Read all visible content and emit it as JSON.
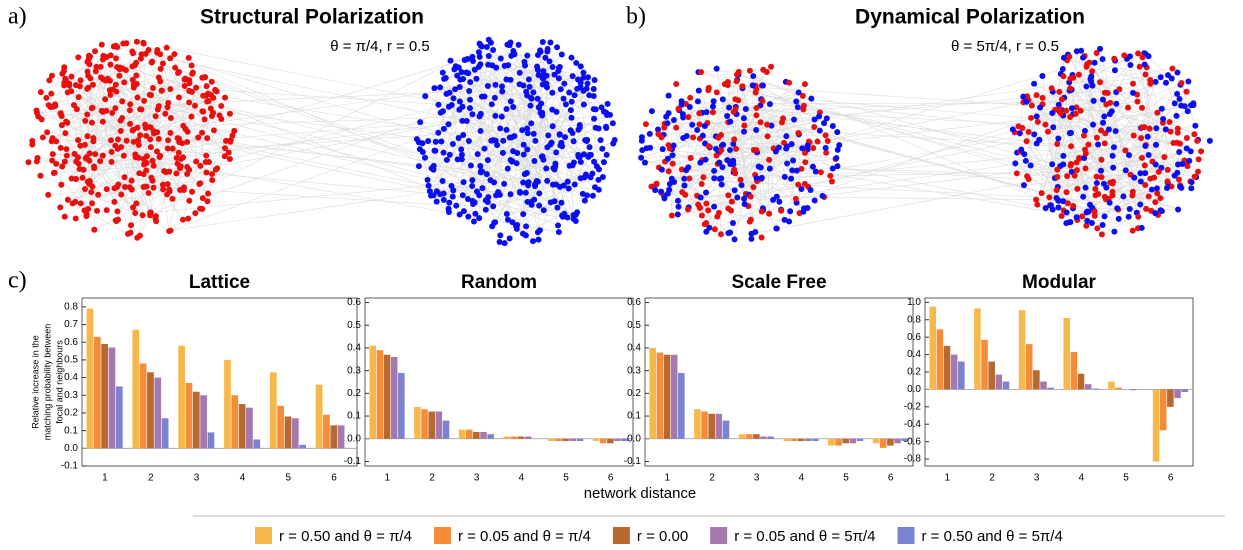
{
  "panels": {
    "a": {
      "label": "a)",
      "title": "Structural Polarization",
      "subtitle": "θ = π/4, r = 0.5"
    },
    "b": {
      "label": "b)",
      "title": "Dynamical Polarization",
      "subtitle": "θ = 5π/4, r = 0.5"
    },
    "c": {
      "label": "c)"
    }
  },
  "x_label": "network distance",
  "y_label": [
    "Relative increase in the",
    "matching probability between",
    "focal and neighbours"
  ],
  "chart_data": [
    {
      "type": "bar",
      "title": "Lattice",
      "categories": [
        "1",
        "2",
        "3",
        "4",
        "5",
        "6"
      ],
      "ylim": [
        -0.1,
        0.85
      ],
      "yticks": [
        -0.1,
        {
          "value": 0,
          "label": "0.0"
        },
        0.1,
        0.2,
        0.3,
        0.4,
        0.5,
        0.6,
        0.7,
        0.8
      ],
      "series": [
        {
          "name": "r = 0.50 and θ = π/4",
          "color": "#f7b84b",
          "values": [
            0.79,
            0.67,
            0.58,
            0.5,
            0.43,
            0.36
          ]
        },
        {
          "name": "r = 0.05 and θ = π/4",
          "color": "#f58c3a",
          "values": [
            0.63,
            0.48,
            0.37,
            0.3,
            0.24,
            0.19
          ]
        },
        {
          "name": "r = 0.00",
          "color": "#b8692f",
          "values": [
            0.59,
            0.43,
            0.32,
            0.25,
            0.18,
            0.13
          ]
        },
        {
          "name": "r = 0.05 and θ = 5π/4",
          "color": "#a678b0",
          "values": [
            0.57,
            0.4,
            0.3,
            0.23,
            0.17,
            0.13
          ]
        },
        {
          "name": "r = 0.50 and θ = 5π/4",
          "color": "#7b83d0",
          "values": [
            0.35,
            0.17,
            0.09,
            0.05,
            0.02,
            0.0
          ]
        }
      ]
    },
    {
      "type": "bar",
      "title": "Random",
      "categories": [
        "1",
        "2",
        "3",
        "4",
        "5",
        "6"
      ],
      "ylim": [
        -0.12,
        0.62
      ],
      "yticks": [
        -0.1,
        {
          "value": 0,
          "label": "0.0"
        },
        0.1,
        0.2,
        0.3,
        0.4,
        0.5,
        0.6
      ],
      "series": [
        {
          "name": "r = 0.50 and θ = π/4",
          "color": "#f7b84b",
          "values": [
            0.41,
            0.14,
            0.04,
            0.01,
            -0.01,
            -0.01
          ]
        },
        {
          "name": "r = 0.05 and θ = π/4",
          "color": "#f58c3a",
          "values": [
            0.39,
            0.13,
            0.04,
            0.01,
            -0.01,
            -0.02
          ]
        },
        {
          "name": "r = 0.00",
          "color": "#b8692f",
          "values": [
            0.37,
            0.12,
            0.03,
            0.01,
            -0.01,
            -0.02
          ]
        },
        {
          "name": "r = 0.05 and θ = 5π/4",
          "color": "#a678b0",
          "values": [
            0.36,
            0.12,
            0.03,
            0.01,
            -0.01,
            -0.01
          ]
        },
        {
          "name": "r = 0.50 and θ = 5π/4",
          "color": "#7b83d0",
          "values": [
            0.29,
            0.08,
            0.02,
            0.0,
            -0.01,
            -0.01
          ]
        }
      ]
    },
    {
      "type": "bar",
      "title": "Scale Free",
      "categories": [
        "1",
        "2",
        "3",
        "4",
        "5",
        "6"
      ],
      "ylim": [
        -0.12,
        0.62
      ],
      "yticks": [
        -0.1,
        {
          "value": 0,
          "label": "0.0"
        },
        0.1,
        0.2,
        0.3,
        0.4,
        0.5,
        0.6
      ],
      "series": [
        {
          "name": "r = 0.50 and θ = π/4",
          "color": "#f7b84b",
          "values": [
            0.4,
            0.13,
            0.02,
            -0.01,
            -0.03,
            -0.02
          ]
        },
        {
          "name": "r = 0.05 and θ = π/4",
          "color": "#f58c3a",
          "values": [
            0.38,
            0.12,
            0.02,
            -0.01,
            -0.03,
            -0.04
          ]
        },
        {
          "name": "r = 0.00",
          "color": "#b8692f",
          "values": [
            0.37,
            0.11,
            0.02,
            -0.01,
            -0.02,
            -0.03
          ]
        },
        {
          "name": "r = 0.05 and θ = 5π/4",
          "color": "#a678b0",
          "values": [
            0.37,
            0.11,
            0.01,
            -0.01,
            -0.02,
            -0.02
          ]
        },
        {
          "name": "r = 0.50 and θ = 5π/4",
          "color": "#7b83d0",
          "values": [
            0.29,
            0.08,
            0.01,
            -0.01,
            -0.01,
            -0.01
          ]
        }
      ]
    },
    {
      "type": "bar",
      "title": "Modular",
      "categories": [
        "1",
        "2",
        "3",
        "4",
        "5",
        "6"
      ],
      "ylim": [
        -0.88,
        1.05
      ],
      "yticks": [
        -0.8,
        -0.6,
        -0.4,
        -0.2,
        {
          "value": 0,
          "label": "0.0"
        },
        0.2,
        0.4,
        0.6,
        0.8,
        {
          "value": 1,
          "label": "1.0"
        }
      ],
      "series": [
        {
          "name": "r = 0.50 and θ = π/4",
          "color": "#f7b84b",
          "values": [
            0.95,
            0.93,
            0.91,
            0.82,
            0.09,
            -0.83
          ]
        },
        {
          "name": "r = 0.05 and θ = π/4",
          "color": "#f58c3a",
          "values": [
            0.69,
            0.57,
            0.52,
            0.43,
            0.02,
            -0.47
          ]
        },
        {
          "name": "r = 0.00",
          "color": "#b8692f",
          "values": [
            0.5,
            0.32,
            0.22,
            0.18,
            0.0,
            -0.2
          ]
        },
        {
          "name": "r = 0.05 and θ = 5π/4",
          "color": "#a678b0",
          "values": [
            0.4,
            0.17,
            0.09,
            0.06,
            -0.01,
            -0.1
          ]
        },
        {
          "name": "r = 0.50 and θ = 5π/4",
          "color": "#7b83d0",
          "values": [
            0.32,
            0.09,
            0.02,
            0.01,
            0.0,
            -0.03
          ]
        }
      ]
    }
  ]
}
